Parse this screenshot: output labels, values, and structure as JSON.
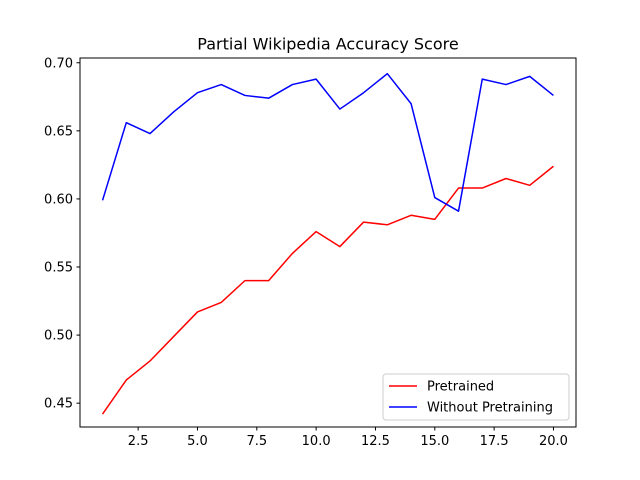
{
  "chart_data": {
    "type": "line",
    "title": "Partial Wikipedia Accuracy Score",
    "xlabel": "",
    "ylabel": "",
    "xlim": [
      0.05,
      20.95
    ],
    "ylim": [
      0.4325,
      0.7035
    ],
    "x_ticks": [
      2.5,
      5.0,
      7.5,
      10.0,
      12.5,
      15.0,
      17.5,
      20.0
    ],
    "x_tick_labels": [
      "2.5",
      "5.0",
      "7.5",
      "10.0",
      "12.5",
      "15.0",
      "17.5",
      "20.0"
    ],
    "y_ticks": [
      0.45,
      0.5,
      0.55,
      0.6,
      0.65,
      0.7
    ],
    "y_tick_labels": [
      "0.45",
      "0.50",
      "0.55",
      "0.60",
      "0.65",
      "0.70"
    ],
    "grid": false,
    "legend_position": "lower-right",
    "x": [
      1,
      2,
      3,
      4,
      5,
      6,
      7,
      8,
      9,
      10,
      11,
      12,
      13,
      14,
      15,
      16,
      17,
      18,
      19,
      20
    ],
    "series": [
      {
        "name": "Pretrained",
        "color": "#ff0000",
        "values": [
          0.442,
          0.467,
          0.481,
          0.499,
          0.517,
          0.524,
          0.54,
          0.54,
          0.56,
          0.576,
          0.565,
          0.583,
          0.581,
          0.588,
          0.585,
          0.608,
          0.608,
          0.615,
          0.61,
          0.624
        ]
      },
      {
        "name": "Without Pretraining",
        "color": "#0000ff",
        "values": [
          0.599,
          0.656,
          0.648,
          0.664,
          0.678,
          0.684,
          0.676,
          0.674,
          0.684,
          0.688,
          0.666,
          0.678,
          0.692,
          0.67,
          0.601,
          0.591,
          0.688,
          0.684,
          0.69,
          0.676
        ]
      }
    ]
  }
}
